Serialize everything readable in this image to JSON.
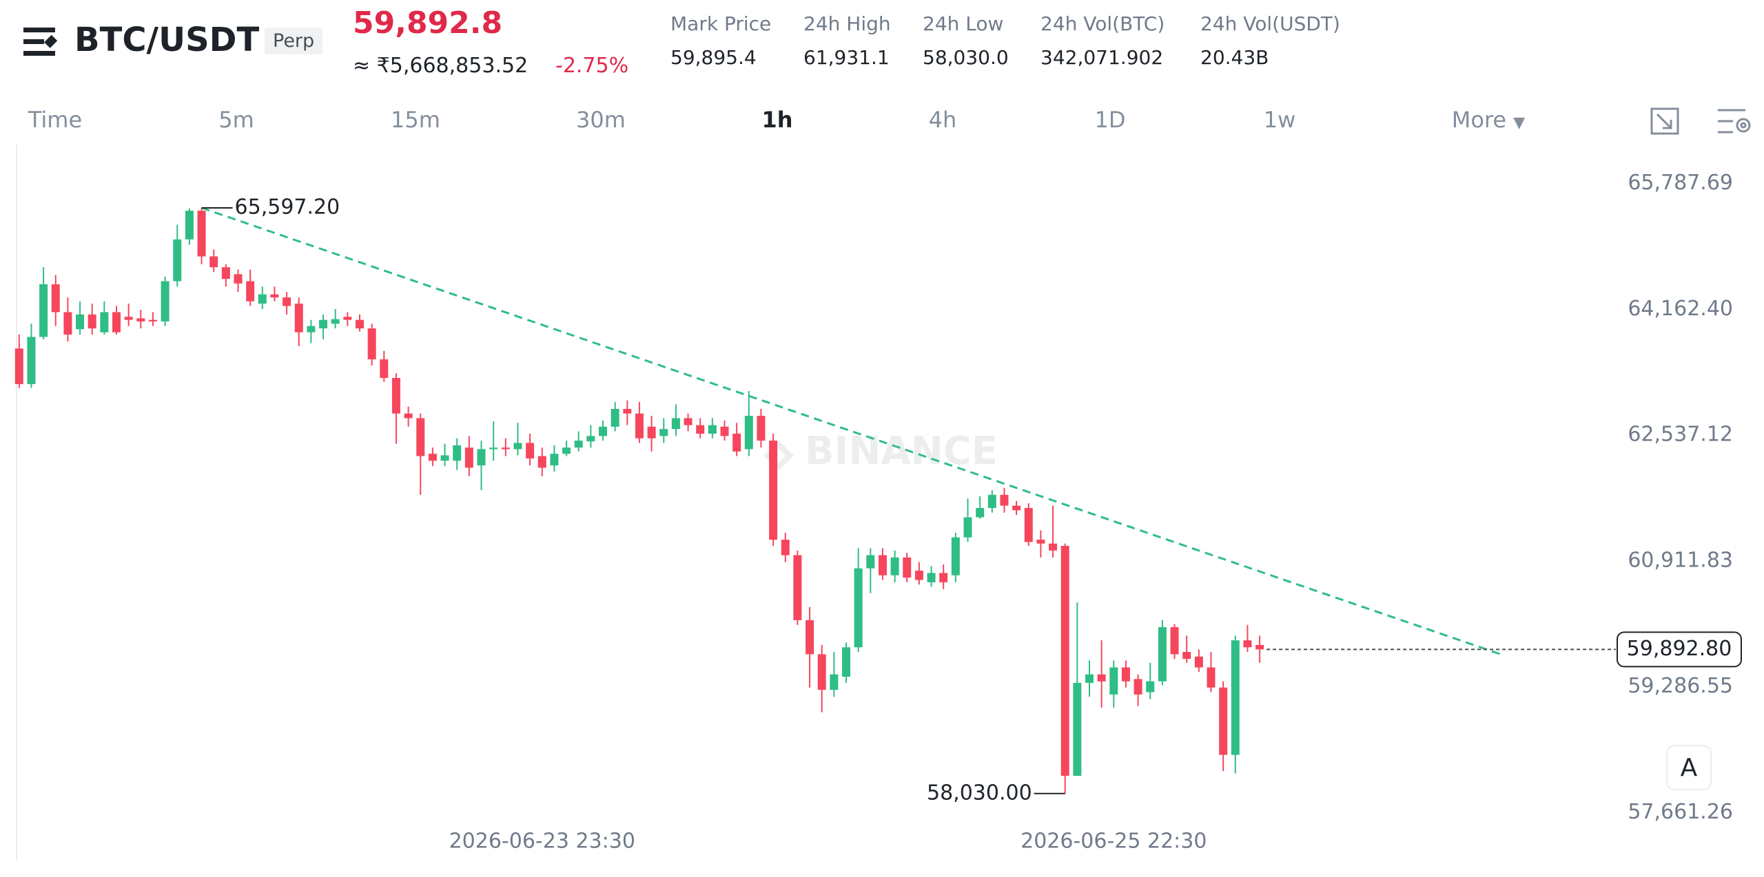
{
  "header": {
    "symbol": "BTC/USDT",
    "contract": "Perp",
    "last_price": "59,892.8",
    "fiat_price": "≈ ₹5,668,853.52",
    "change": "-2.75%",
    "stats": [
      {
        "label": "Mark Price",
        "value": "59,895.4"
      },
      {
        "label": "24h High",
        "value": "61,931.1"
      },
      {
        "label": "24h Low",
        "value": "58,030.0"
      },
      {
        "label": "24h Vol(BTC)",
        "value": "342,071.902"
      },
      {
        "label": "24h Vol(USDT)",
        "value": "20.43B"
      }
    ]
  },
  "toolbar": {
    "intervals": [
      "Time",
      "5m",
      "15m",
      "30m",
      "1h",
      "4h",
      "1D",
      "1w"
    ],
    "active": 4,
    "more": "More"
  },
  "watermark": "BINANCE",
  "auto_button": "A",
  "chart_data": {
    "type": "candlestick",
    "colors": {
      "up": "#2ebd85",
      "down": "#f6465d"
    },
    "categories": [
      null,
      null,
      null,
      null,
      null,
      null,
      null,
      null,
      null,
      null,
      null,
      null,
      null,
      null,
      null,
      null,
      null,
      null,
      null,
      null,
      null,
      null,
      null,
      null,
      null,
      null,
      null,
      null,
      null,
      null,
      null,
      null,
      null,
      null,
      null,
      null,
      null,
      null,
      null,
      null,
      null,
      null,
      null,
      "2026-06-23 23:30",
      null,
      null,
      null,
      null,
      null,
      null,
      null,
      null,
      null,
      null,
      null,
      null,
      null,
      null,
      null,
      null,
      null,
      null,
      null,
      null,
      null,
      null,
      null,
      null,
      null,
      null,
      null,
      null,
      null,
      null,
      null,
      null,
      null,
      null,
      null,
      null,
      null,
      null,
      null,
      null,
      null,
      null,
      null,
      null,
      null,
      null,
      "2026-06-25 22:30",
      null,
      null,
      null,
      null,
      null,
      null,
      null,
      null,
      null,
      null,
      null,
      null
    ],
    "candles": [
      [
        63780,
        63960,
        63270,
        63320
      ],
      [
        63320,
        64100,
        63270,
        63930
      ],
      [
        63930,
        64830,
        63900,
        64610
      ],
      [
        64610,
        64730,
        64070,
        64250
      ],
      [
        64250,
        64440,
        63870,
        63960
      ],
      [
        64030,
        64390,
        63960,
        64220
      ],
      [
        64220,
        64360,
        63960,
        64040
      ],
      [
        63990,
        64390,
        63960,
        64250
      ],
      [
        64250,
        64330,
        63960,
        63990
      ],
      [
        64190,
        64360,
        64070,
        64150
      ],
      [
        64170,
        64280,
        64040,
        64130
      ],
      [
        64150,
        64250,
        64070,
        64130
      ],
      [
        64130,
        64710,
        64070,
        64650
      ],
      [
        64650,
        65380,
        64580,
        65190
      ],
      [
        65190,
        65590,
        65120,
        65560
      ],
      [
        65560,
        65597.2,
        64870,
        64970
      ],
      [
        64970,
        65060,
        64770,
        64830
      ],
      [
        64830,
        64870,
        64580,
        64680
      ],
      [
        64740,
        64800,
        64510,
        64620
      ],
      [
        64650,
        64800,
        64330,
        64390
      ],
      [
        64360,
        64580,
        64290,
        64480
      ],
      [
        64480,
        64580,
        64390,
        64440
      ],
      [
        64440,
        64510,
        64220,
        64330
      ],
      [
        64360,
        64440,
        63810,
        63990
      ],
      [
        63990,
        64150,
        63850,
        64070
      ],
      [
        64040,
        64220,
        63900,
        64150
      ],
      [
        64100,
        64290,
        64040,
        64160
      ],
      [
        64190,
        64250,
        64070,
        64150
      ],
      [
        64150,
        64220,
        64000,
        64040
      ],
      [
        64040,
        64100,
        63560,
        63640
      ],
      [
        63640,
        63750,
        63350,
        63400
      ],
      [
        63400,
        63460,
        62550,
        62940
      ],
      [
        62940,
        63030,
        62770,
        62880
      ],
      [
        62880,
        62940,
        61890,
        62390
      ],
      [
        62420,
        62500,
        62260,
        62330
      ],
      [
        62330,
        62550,
        62260,
        62400
      ],
      [
        62330,
        62620,
        62210,
        62530
      ],
      [
        62500,
        62650,
        62130,
        62240
      ],
      [
        62270,
        62590,
        61950,
        62480
      ],
      [
        62480,
        62840,
        62330,
        62500
      ],
      [
        62500,
        62620,
        62390,
        62480
      ],
      [
        62480,
        62820,
        62400,
        62560
      ],
      [
        62560,
        62680,
        62270,
        62360
      ],
      [
        62390,
        62500,
        62130,
        62240
      ],
      [
        62270,
        62530,
        62190,
        62420
      ],
      [
        62420,
        62590,
        62390,
        62500
      ],
      [
        62500,
        62710,
        62450,
        62590
      ],
      [
        62580,
        62790,
        62500,
        62650
      ],
      [
        62650,
        62850,
        62590,
        62770
      ],
      [
        62770,
        63090,
        62710,
        63000
      ],
      [
        63000,
        63110,
        62790,
        62940
      ],
      [
        62940,
        63090,
        62560,
        62620
      ],
      [
        62770,
        62910,
        62450,
        62620
      ],
      [
        62650,
        62880,
        62560,
        62740
      ],
      [
        62740,
        63060,
        62650,
        62880
      ],
      [
        62880,
        62940,
        62710,
        62790
      ],
      [
        62790,
        62880,
        62620,
        62680
      ],
      [
        62680,
        62880,
        62620,
        62790
      ],
      [
        62770,
        62850,
        62590,
        62650
      ],
      [
        62680,
        62820,
        62390,
        62450
      ],
      [
        62480,
        63230,
        62390,
        62910
      ],
      [
        62910,
        63000,
        62500,
        62590
      ],
      [
        62590,
        62680,
        61230,
        61310
      ],
      [
        61310,
        61400,
        61020,
        61110
      ],
      [
        61110,
        61170,
        60210,
        60270
      ],
      [
        60270,
        60440,
        59400,
        59830
      ],
      [
        59830,
        59950,
        59080,
        59370
      ],
      [
        59370,
        59860,
        59280,
        59570
      ],
      [
        59540,
        59980,
        59460,
        59920
      ],
      [
        59920,
        61200,
        59860,
        60940
      ],
      [
        60940,
        61200,
        60620,
        61110
      ],
      [
        61110,
        61200,
        60790,
        60850
      ],
      [
        60850,
        61170,
        60760,
        61080
      ],
      [
        61080,
        61140,
        60760,
        60820
      ],
      [
        60910,
        61020,
        60730,
        60790
      ],
      [
        60760,
        60970,
        60700,
        60880
      ],
      [
        60880,
        60990,
        60670,
        60760
      ],
      [
        60850,
        61400,
        60760,
        61340
      ],
      [
        61340,
        61840,
        61280,
        61600
      ],
      [
        61600,
        61870,
        61580,
        61720
      ],
      [
        61720,
        61950,
        61660,
        61890
      ],
      [
        61890,
        61980,
        61660,
        61750
      ],
      [
        61750,
        61810,
        61630,
        61690
      ],
      [
        61720,
        61780,
        61230,
        61280
      ],
      [
        61310,
        61430,
        61080,
        61260
      ],
      [
        61260,
        61750,
        61080,
        61170
      ],
      [
        61230,
        61260,
        58030,
        58260
      ],
      [
        58260,
        60500,
        58260,
        59460
      ],
      [
        59460,
        59750,
        59280,
        59570
      ],
      [
        59570,
        60010,
        59140,
        59480
      ],
      [
        59310,
        59750,
        59140,
        59660
      ],
      [
        59660,
        59750,
        59400,
        59480
      ],
      [
        59510,
        59570,
        59160,
        59310
      ],
      [
        59340,
        59720,
        59250,
        59480
      ],
      [
        59480,
        60270,
        59430,
        60180
      ],
      [
        60180,
        60220,
        59770,
        59830
      ],
      [
        59860,
        60070,
        59720,
        59770
      ],
      [
        59800,
        59890,
        59600,
        59660
      ],
      [
        59660,
        59860,
        59340,
        59400
      ],
      [
        59400,
        59480,
        58320,
        58530
      ],
      [
        58530,
        60070,
        58290,
        60010
      ],
      [
        60010,
        60210,
        59860,
        59920
      ],
      [
        59950,
        60070,
        59720,
        59892.8
      ]
    ],
    "ylim": [
      57219,
      66424
    ],
    "yticks": [
      {
        "value": 65787.69,
        "label": "65,787.69"
      },
      {
        "value": 64162.4,
        "label": "64,162.40"
      },
      {
        "value": 62537.12,
        "label": "62,537.12"
      },
      {
        "value": 60911.83,
        "label": "60,911.83"
      },
      {
        "value": 59286.55,
        "label": "59,286.55"
      },
      {
        "value": 57661.26,
        "label": "57,661.26"
      }
    ],
    "last": {
      "value": 59892.8,
      "label": "59,892.80"
    },
    "high_label": {
      "value": 65597.2,
      "label": "65,597.20"
    },
    "low_label": {
      "value": 58030,
      "label": "58,030.00"
    },
    "trendline": {
      "x": [
        15,
        122
      ],
      "y": [
        65597.2,
        59820
      ]
    }
  }
}
